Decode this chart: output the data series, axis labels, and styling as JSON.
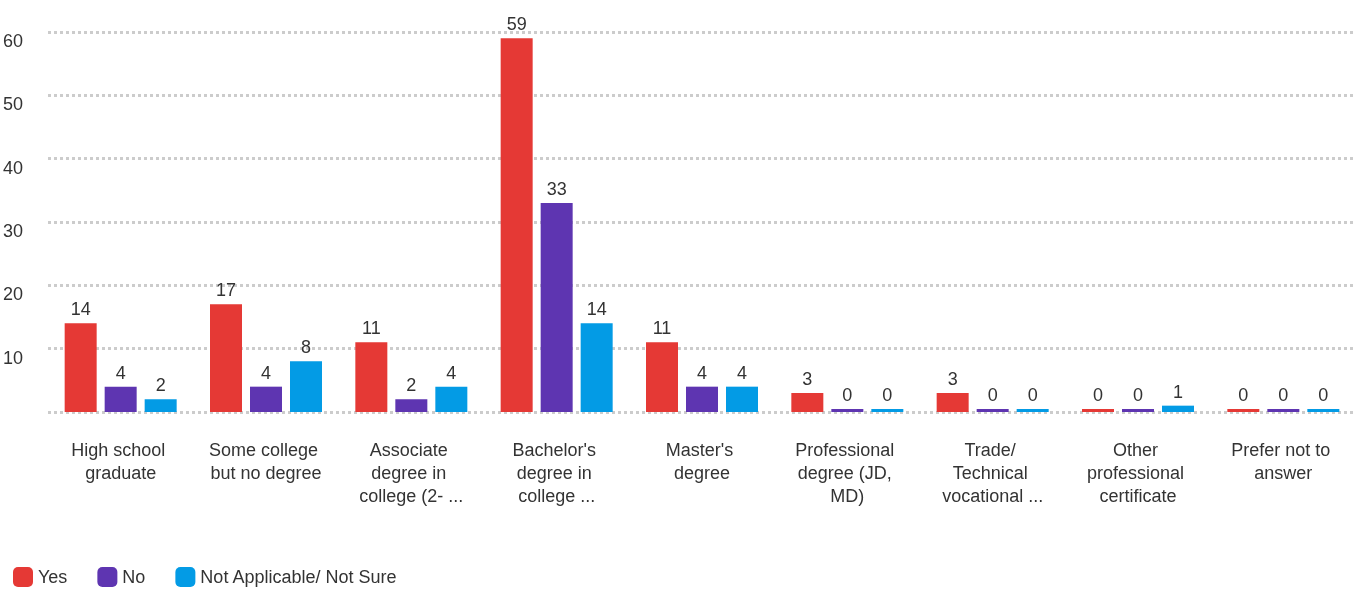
{
  "chart_data": {
    "type": "bar",
    "categories": [
      "High school graduate",
      "Some college but no degree",
      "Associate degree in college (2- ...",
      "Bachelor's degree in college ...",
      "Master's degree",
      "Professional degree (JD, MD)",
      "Trade/ Technical vocational ...",
      "Other professional certificate",
      "Prefer not to answer"
    ],
    "series": [
      {
        "name": "Yes",
        "color": "#e53935",
        "values": [
          14,
          17,
          11,
          59,
          11,
          3,
          3,
          0,
          0
        ]
      },
      {
        "name": "No",
        "color": "#5e35b1",
        "values": [
          4,
          4,
          2,
          33,
          4,
          0,
          0,
          0,
          0
        ]
      },
      {
        "name": "Not Applicable/ Not Sure",
        "color": "#039be5",
        "values": [
          2,
          8,
          4,
          14,
          4,
          0,
          0,
          1,
          0
        ]
      }
    ],
    "ylim": [
      0,
      60
    ],
    "yticks": [
      {
        "value": 0,
        "label": null
      },
      10,
      20,
      30,
      40,
      50,
      60
    ],
    "grid": "y",
    "legend": "bottom left",
    "data_labels": true
  }
}
